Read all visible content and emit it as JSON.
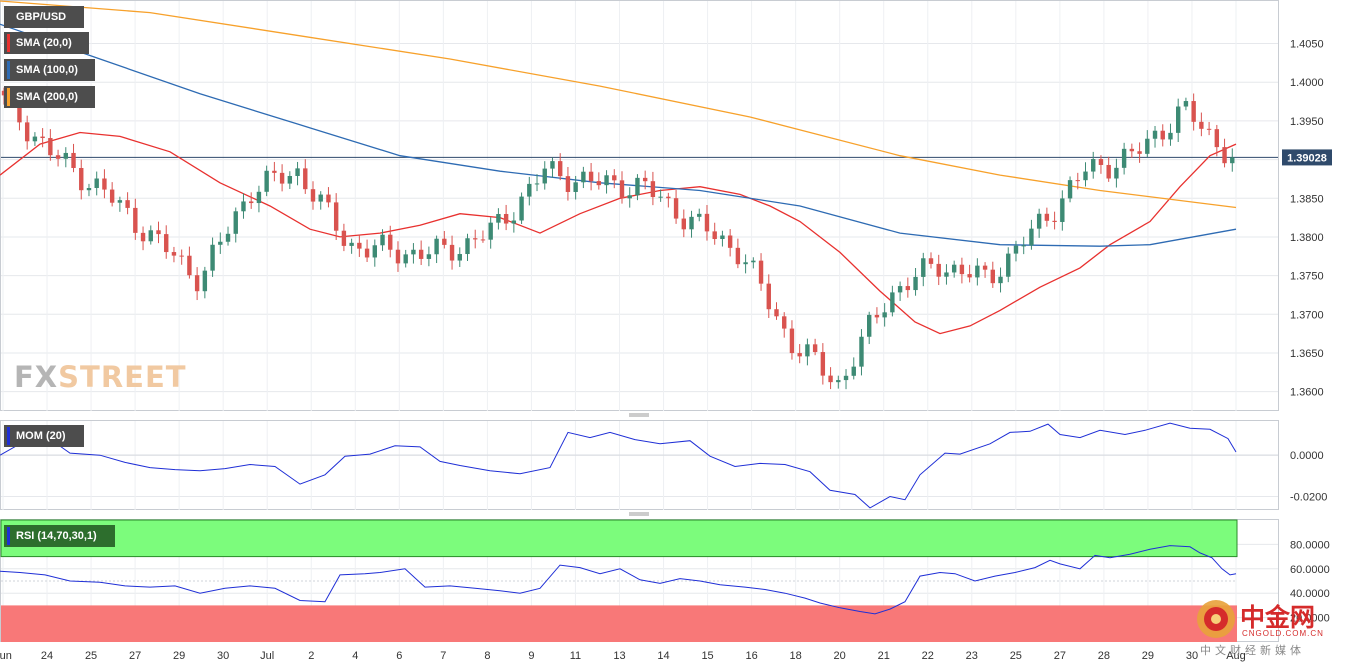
{
  "legends": {
    "pair": "GBP/USD",
    "sma20": "SMA (20,0)",
    "sma100": "SMA (100,0)",
    "sma200": "SMA (200,0)",
    "mom": "MOM (20)",
    "rsi": "RSI (14,70,30,1)"
  },
  "watermark": {
    "fx": "FX",
    "street": "STREET"
  },
  "cngold": {
    "big": "中金网",
    "url": "CNGOLD.COM.CN",
    "sub": "中文财经新媒体"
  },
  "colors": {
    "up": "#3d8a74",
    "down": "#d9534f",
    "sma20": "#e8312f",
    "sma100": "#2e6bb3",
    "sma200": "#f7a12b",
    "mom": "#1f2fd6",
    "rsi": "#1f2fd6",
    "overbought": "#7cfc7c",
    "oversold": "#f87878",
    "price_tag": "#2f4a6b"
  },
  "chart_data": [
    {
      "type": "candlestick",
      "title": "GBP/USD",
      "ylim": [
        1.3575,
        1.4105
      ],
      "y_ticks": [
        "1.3600",
        "1.3650",
        "1.3700",
        "1.3750",
        "1.3800",
        "1.3850",
        "1.3900",
        "1.3950",
        "1.4000",
        "1.4050"
      ],
      "x_tick_labels": [
        "Jun",
        "24",
        "25",
        "27",
        "29",
        "30",
        "Jul",
        "2",
        "4",
        "6",
        "7",
        "8",
        "9",
        "11",
        "13",
        "14",
        "15",
        "16",
        "18",
        "20",
        "21",
        "22",
        "23",
        "25",
        "27",
        "28",
        "29",
        "30",
        "Aug"
      ],
      "last_price": "1.39028",
      "last_price_value": 1.39028,
      "key_closes": [
        1.3975,
        1.3905,
        1.386,
        1.38,
        1.3745,
        1.386,
        1.3885,
        1.379,
        1.378,
        1.378,
        1.381,
        1.3885,
        1.387,
        1.3865,
        1.382,
        1.378,
        1.3665,
        1.361,
        1.3725,
        1.3765,
        1.3745,
        1.381,
        1.3885,
        1.3905,
        1.3965,
        1.3903
      ],
      "series": [
        {
          "name": "SMA (20,0)",
          "points": [
            [
              0,
              1.388
            ],
            [
              40,
              1.392
            ],
            [
              80,
              1.3935
            ],
            [
              120,
              1.393
            ],
            [
              170,
              1.391
            ],
            [
              220,
              1.387
            ],
            [
              270,
              1.384
            ],
            [
              310,
              1.381
            ],
            [
              340,
              1.38
            ],
            [
              380,
              1.3805
            ],
            [
              420,
              1.3815
            ],
            [
              460,
              1.383
            ],
            [
              500,
              1.3825
            ],
            [
              540,
              1.3805
            ],
            [
              580,
              1.383
            ],
            [
              620,
              1.385
            ],
            [
              660,
              1.386
            ],
            [
              700,
              1.3865
            ],
            [
              740,
              1.3855
            ],
            [
              770,
              1.384
            ],
            [
              800,
              1.382
            ],
            [
              840,
              1.378
            ],
            [
              880,
              1.373
            ],
            [
              915,
              1.369
            ],
            [
              940,
              1.3675
            ],
            [
              970,
              1.3685
            ],
            [
              1000,
              1.3705
            ],
            [
              1040,
              1.3735
            ],
            [
              1080,
              1.376
            ],
            [
              1110,
              1.379
            ],
            [
              1150,
              1.382
            ],
            [
              1180,
              1.3865
            ],
            [
              1210,
              1.3905
            ],
            [
              1236,
              1.392
            ]
          ]
        },
        {
          "name": "SMA (100,0)",
          "points": [
            [
              0,
              1.4075
            ],
            [
              100,
              1.403
            ],
            [
              200,
              1.3985
            ],
            [
              300,
              1.3945
            ],
            [
              400,
              1.3905
            ],
            [
              500,
              1.3885
            ],
            [
              600,
              1.387
            ],
            [
              700,
              1.386
            ],
            [
              800,
              1.384
            ],
            [
              900,
              1.3805
            ],
            [
              1000,
              1.379
            ],
            [
              1100,
              1.3788
            ],
            [
              1150,
              1.379
            ],
            [
              1236,
              1.381
            ]
          ]
        },
        {
          "name": "SMA (200,0)",
          "points": [
            [
              0,
              1.4105
            ],
            [
              150,
              1.409
            ],
            [
              300,
              1.406
            ],
            [
              450,
              1.403
            ],
            [
              600,
              1.3995
            ],
            [
              750,
              1.3955
            ],
            [
              900,
              1.3905
            ],
            [
              1000,
              1.388
            ],
            [
              1100,
              1.386
            ],
            [
              1236,
              1.3838
            ]
          ]
        }
      ]
    },
    {
      "type": "line",
      "title": "MOM (20)",
      "ylim": [
        -0.0265,
        0.0165
      ],
      "y_ticks": [
        "0.0000",
        "-0.0200"
      ],
      "series": [
        {
          "name": "MOM (20)",
          "points": [
            [
              0,
              0.0
            ],
            [
              20,
              0.0055
            ],
            [
              45,
              0.0095
            ],
            [
              70,
              0.001
            ],
            [
              100,
              0.0
            ],
            [
              125,
              -0.0035
            ],
            [
              150,
              -0.006
            ],
            [
              175,
              -0.007
            ],
            [
              200,
              -0.0075
            ],
            [
              225,
              -0.0065
            ],
            [
              250,
              -0.0045
            ],
            [
              275,
              -0.0055
            ],
            [
              300,
              -0.014
            ],
            [
              325,
              -0.0095
            ],
            [
              345,
              -0.0005
            ],
            [
              370,
              0.0005
            ],
            [
              395,
              0.0045
            ],
            [
              420,
              0.004
            ],
            [
              440,
              -0.003
            ],
            [
              460,
              -0.005
            ],
            [
              490,
              -0.0075
            ],
            [
              520,
              -0.009
            ],
            [
              550,
              -0.006
            ],
            [
              568,
              0.011
            ],
            [
              590,
              0.0085
            ],
            [
              610,
              0.011
            ],
            [
              635,
              0.0075
            ],
            [
              660,
              0.0055
            ],
            [
              690,
              0.007
            ],
            [
              710,
              -0.0005
            ],
            [
              735,
              -0.0055
            ],
            [
              760,
              -0.004
            ],
            [
              785,
              -0.0045
            ],
            [
              810,
              -0.008
            ],
            [
              830,
              -0.017
            ],
            [
              855,
              -0.019
            ],
            [
              870,
              -0.0255
            ],
            [
              890,
              -0.02
            ],
            [
              905,
              -0.0215
            ],
            [
              920,
              -0.0095
            ],
            [
              945,
              0.001
            ],
            [
              960,
              0.0005
            ],
            [
              990,
              0.0055
            ],
            [
              1010,
              0.011
            ],
            [
              1030,
              0.0115
            ],
            [
              1048,
              0.015
            ],
            [
              1060,
              0.01
            ],
            [
              1080,
              0.0085
            ],
            [
              1100,
              0.012
            ],
            [
              1125,
              0.01
            ],
            [
              1145,
              0.012
            ],
            [
              1170,
              0.0155
            ],
            [
              1190,
              0.013
            ],
            [
              1210,
              0.0125
            ],
            [
              1228,
              0.008
            ],
            [
              1236,
              0.0015
            ]
          ]
        }
      ]
    },
    {
      "type": "line",
      "title": "RSI (14,70,30,1)",
      "ylim": [
        0,
        100
      ],
      "y_ticks": [
        "80.0000",
        "60.0000",
        "40.0000",
        "20.0000"
      ],
      "overbought": 70,
      "oversold": 30,
      "series": [
        {
          "name": "RSI (14,70,30,1)",
          "points": [
            [
              0,
              58
            ],
            [
              20,
              57
            ],
            [
              45,
              55
            ],
            [
              70,
              50
            ],
            [
              100,
              49
            ],
            [
              125,
              46
            ],
            [
              150,
              45
            ],
            [
              175,
              46
            ],
            [
              200,
              40
            ],
            [
              225,
              44
            ],
            [
              250,
              46
            ],
            [
              275,
              44
            ],
            [
              300,
              34
            ],
            [
              325,
              33
            ],
            [
              340,
              55
            ],
            [
              365,
              56
            ],
            [
              380,
              57
            ],
            [
              405,
              60
            ],
            [
              425,
              45
            ],
            [
              450,
              46
            ],
            [
              475,
              44
            ],
            [
              500,
              42
            ],
            [
              520,
              40
            ],
            [
              540,
              44
            ],
            [
              560,
              63
            ],
            [
              580,
              61
            ],
            [
              600,
              56
            ],
            [
              620,
              60
            ],
            [
              640,
              51
            ],
            [
              660,
              48
            ],
            [
              680,
              52
            ],
            [
              700,
              50
            ],
            [
              720,
              47
            ],
            [
              745,
              45
            ],
            [
              765,
              43
            ],
            [
              785,
              40
            ],
            [
              805,
              36
            ],
            [
              820,
              32
            ],
            [
              840,
              28
            ],
            [
              860,
              25
            ],
            [
              875,
              23
            ],
            [
              890,
              27
            ],
            [
              905,
              33
            ],
            [
              920,
              54
            ],
            [
              940,
              57
            ],
            [
              955,
              56
            ],
            [
              975,
              50
            ],
            [
              995,
              54
            ],
            [
              1015,
              57
            ],
            [
              1035,
              61
            ],
            [
              1050,
              67
            ],
            [
              1060,
              64
            ],
            [
              1080,
              60
            ],
            [
              1095,
              71
            ],
            [
              1110,
              69
            ],
            [
              1130,
              72
            ],
            [
              1150,
              76
            ],
            [
              1170,
              79
            ],
            [
              1190,
              78
            ],
            [
              1200,
              73
            ],
            [
              1212,
              69
            ],
            [
              1222,
              60
            ],
            [
              1230,
              55
            ],
            [
              1236,
              56
            ]
          ]
        }
      ]
    }
  ]
}
